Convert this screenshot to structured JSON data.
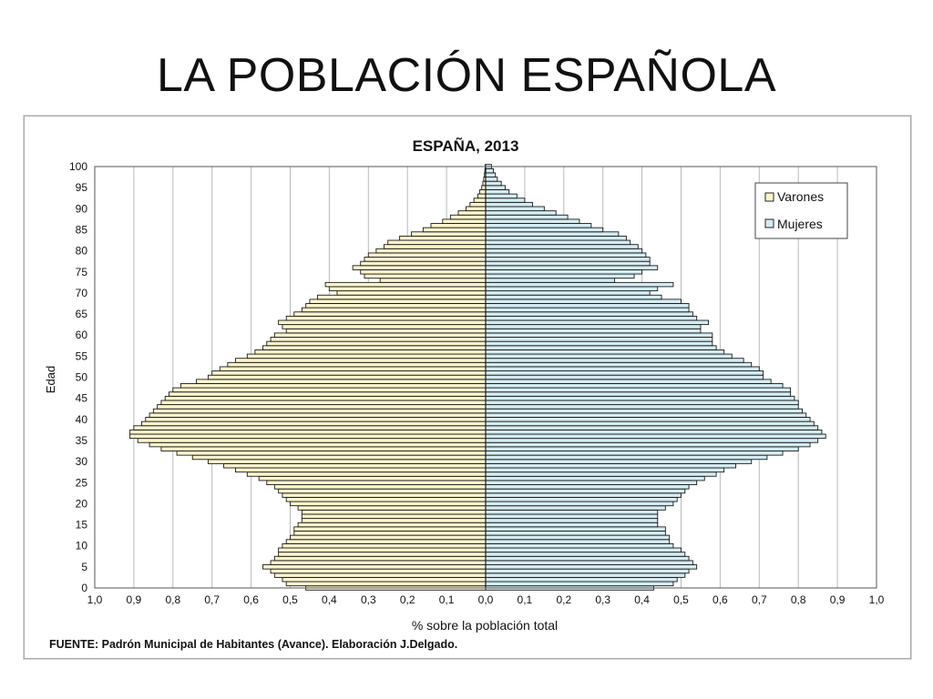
{
  "slide": {
    "title": "LA POBLACIÓN ESPAÑOLA"
  },
  "chart_data": {
    "type": "bar",
    "orientation": "horizontal",
    "layout": "population-pyramid",
    "title": "ESPAÑA, 2013",
    "xlabel": "% sobre la población total",
    "ylabel": "Edad",
    "source": "FUENTE: Padrón Municipal de Habitantes (Avance). Elaboración J.Delgado.",
    "xlim": [
      -1.0,
      1.0
    ],
    "ylim": [
      0,
      100
    ],
    "x_ticks": [
      "1,0",
      "0,9",
      "0,8",
      "0,7",
      "0,6",
      "0,5",
      "0,4",
      "0,3",
      "0,2",
      "0,1",
      "0,0",
      "0,1",
      "0,2",
      "0,3",
      "0,4",
      "0,5",
      "0,6",
      "0,7",
      "0,8",
      "0,9",
      "1,0"
    ],
    "y_ticks": [
      "0",
      "5",
      "10",
      "15",
      "20",
      "25",
      "30",
      "35",
      "40",
      "45",
      "50",
      "55",
      "60",
      "65",
      "70",
      "75",
      "80",
      "85",
      "90",
      "95",
      "100"
    ],
    "grid": true,
    "legend_position": "top-right",
    "colors": {
      "Varones": "#fdf5cd",
      "Mujeres": "#d5ecf3",
      "edge": "#1a1a1a"
    },
    "ages": [
      0,
      1,
      2,
      3,
      4,
      5,
      6,
      7,
      8,
      9,
      10,
      11,
      12,
      13,
      14,
      15,
      16,
      17,
      18,
      19,
      20,
      21,
      22,
      23,
      24,
      25,
      26,
      27,
      28,
      29,
      30,
      31,
      32,
      33,
      34,
      35,
      36,
      37,
      38,
      39,
      40,
      41,
      42,
      43,
      44,
      45,
      46,
      47,
      48,
      49,
      50,
      51,
      52,
      53,
      54,
      55,
      56,
      57,
      58,
      59,
      60,
      61,
      62,
      63,
      64,
      65,
      66,
      67,
      68,
      69,
      70,
      71,
      72,
      73,
      74,
      75,
      76,
      77,
      78,
      79,
      80,
      81,
      82,
      83,
      84,
      85,
      86,
      87,
      88,
      89,
      90,
      91,
      92,
      93,
      94,
      95,
      96,
      97,
      98,
      99,
      100
    ],
    "series": [
      {
        "name": "Varones",
        "values": [
          0.46,
          0.51,
          0.52,
          0.54,
          0.55,
          0.57,
          0.55,
          0.54,
          0.53,
          0.53,
          0.52,
          0.51,
          0.5,
          0.49,
          0.49,
          0.48,
          0.47,
          0.47,
          0.47,
          0.48,
          0.5,
          0.51,
          0.52,
          0.53,
          0.54,
          0.56,
          0.58,
          0.61,
          0.64,
          0.67,
          0.71,
          0.75,
          0.79,
          0.83,
          0.86,
          0.89,
          0.91,
          0.91,
          0.9,
          0.88,
          0.87,
          0.86,
          0.85,
          0.84,
          0.83,
          0.82,
          0.81,
          0.8,
          0.78,
          0.74,
          0.71,
          0.7,
          0.68,
          0.66,
          0.64,
          0.61,
          0.59,
          0.57,
          0.56,
          0.55,
          0.54,
          0.51,
          0.52,
          0.53,
          0.51,
          0.49,
          0.47,
          0.46,
          0.45,
          0.43,
          0.38,
          0.4,
          0.41,
          0.27,
          0.31,
          0.32,
          0.34,
          0.32,
          0.31,
          0.3,
          0.28,
          0.26,
          0.25,
          0.22,
          0.19,
          0.16,
          0.14,
          0.11,
          0.09,
          0.07,
          0.05,
          0.04,
          0.03,
          0.02,
          0.015,
          0.01,
          0.007,
          0.005,
          0.003,
          0.002,
          0.001
        ]
      },
      {
        "name": "Mujeres",
        "values": [
          0.43,
          0.48,
          0.49,
          0.51,
          0.52,
          0.54,
          0.53,
          0.52,
          0.51,
          0.5,
          0.48,
          0.47,
          0.47,
          0.46,
          0.46,
          0.44,
          0.44,
          0.44,
          0.44,
          0.46,
          0.48,
          0.49,
          0.5,
          0.51,
          0.52,
          0.54,
          0.56,
          0.59,
          0.61,
          0.64,
          0.68,
          0.72,
          0.76,
          0.8,
          0.83,
          0.85,
          0.87,
          0.86,
          0.85,
          0.84,
          0.83,
          0.82,
          0.81,
          0.8,
          0.8,
          0.79,
          0.78,
          0.78,
          0.76,
          0.73,
          0.71,
          0.71,
          0.7,
          0.68,
          0.66,
          0.63,
          0.61,
          0.59,
          0.58,
          0.58,
          0.58,
          0.55,
          0.55,
          0.57,
          0.54,
          0.53,
          0.52,
          0.52,
          0.5,
          0.45,
          0.42,
          0.44,
          0.48,
          0.33,
          0.38,
          0.4,
          0.44,
          0.42,
          0.42,
          0.41,
          0.4,
          0.39,
          0.37,
          0.36,
          0.34,
          0.3,
          0.27,
          0.24,
          0.21,
          0.18,
          0.15,
          0.12,
          0.1,
          0.08,
          0.06,
          0.05,
          0.04,
          0.03,
          0.025,
          0.02,
          0.015
        ]
      }
    ]
  }
}
